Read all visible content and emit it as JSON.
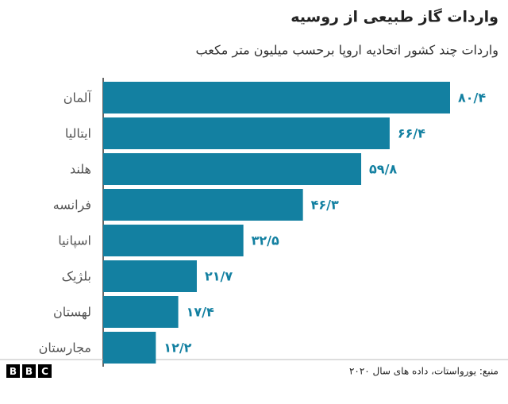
{
  "chart_data": {
    "type": "bar",
    "orientation": "horizontal",
    "title": "واردات گاز طبیعی از روسیه",
    "subtitle": "واردات چند کشور اتحادیه اروپا برحسب میلیون متر مکعب",
    "categories": [
      "آلمان",
      "ایتالیا",
      "هلند",
      "فرانسه",
      "اسپانیا",
      "بلژیک",
      "لهستان",
      "مجارستان"
    ],
    "values": [
      80.4,
      66.4,
      59.8,
      46.3,
      32.5,
      21.7,
      17.4,
      12.2
    ],
    "value_labels": [
      "۸۰/۴",
      "۶۶/۴",
      "۵۹/۸",
      "۴۶/۳",
      "۳۲/۵",
      "۲۱/۷",
      "۱۷/۴",
      "۱۲/۲"
    ],
    "color": "#1380a1",
    "source": "منبع: یورواستات، داده های سال ۲۰۲۰",
    "logo": [
      "B",
      "B",
      "C"
    ]
  }
}
